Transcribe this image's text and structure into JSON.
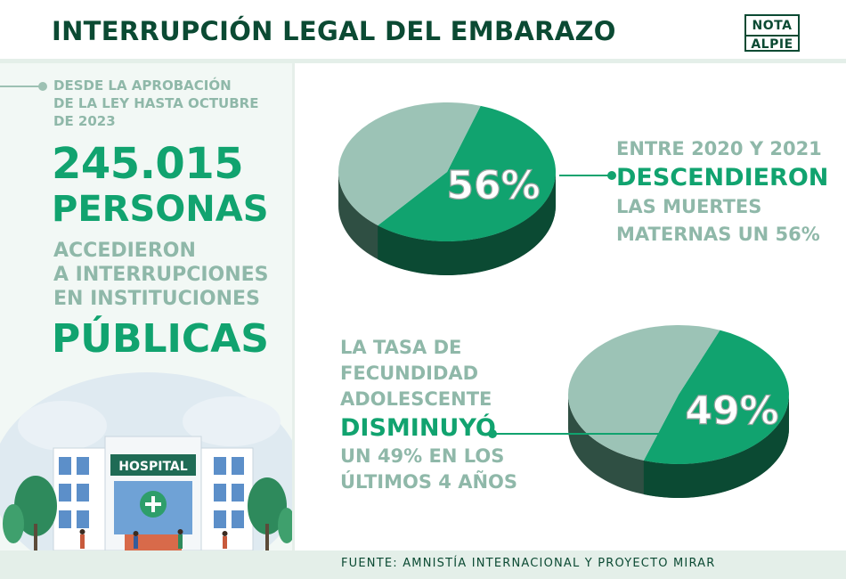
{
  "header": {
    "title": "INTERRUPCIÓN LEGAL DEL EMBARAZO",
    "logo_line1": "NOTA",
    "logo_line2": "ALPIE"
  },
  "left": {
    "intro_lines": [
      "DESDE LA APROBACIÓN",
      "DE LA LEY HASTA OCTUBRE",
      "DE 2023"
    ],
    "big_number": "245.015",
    "big_unit": "PERSONAS",
    "body_lines": [
      "ACCEDIERON",
      "A INTERRUPCIONES",
      "EN INSTITUCIONES"
    ],
    "emphasis": "PÚBLICAS",
    "illustration_sign": "HOSPITAL"
  },
  "stat_mortality": {
    "lines": [
      "ENTRE 2020 Y 2021",
      "DESCENDIERON",
      "LAS MUERTES",
      "MATERNAS UN 56%"
    ]
  },
  "stat_fertility": {
    "lines": [
      "LA TASA DE",
      "FECUNDIDAD",
      "ADOLESCENTE",
      "DISMINUYÓ",
      "UN 49% EN LOS",
      "ÚLTIMOS 4 AÑOS"
    ]
  },
  "footer": {
    "source": "FUENTE: AMNISTÍA INTERNACIONAL Y PROYECTO MIRAR"
  },
  "colors": {
    "dark_green": "#0b4a33",
    "accent_green": "#11a36f",
    "muted_green": "#8fb8a9",
    "pie_gray": "#9cc3b6"
  },
  "chart_data": [
    {
      "type": "pie",
      "label": "56%",
      "slices": [
        {
          "value": 56,
          "color": "#11a36f"
        },
        {
          "value": 44,
          "color": "#9cc3b6"
        }
      ]
    },
    {
      "type": "pie",
      "label": "49%",
      "slices": [
        {
          "value": 49,
          "color": "#11a36f"
        },
        {
          "value": 51,
          "color": "#9cc3b6"
        }
      ]
    }
  ]
}
